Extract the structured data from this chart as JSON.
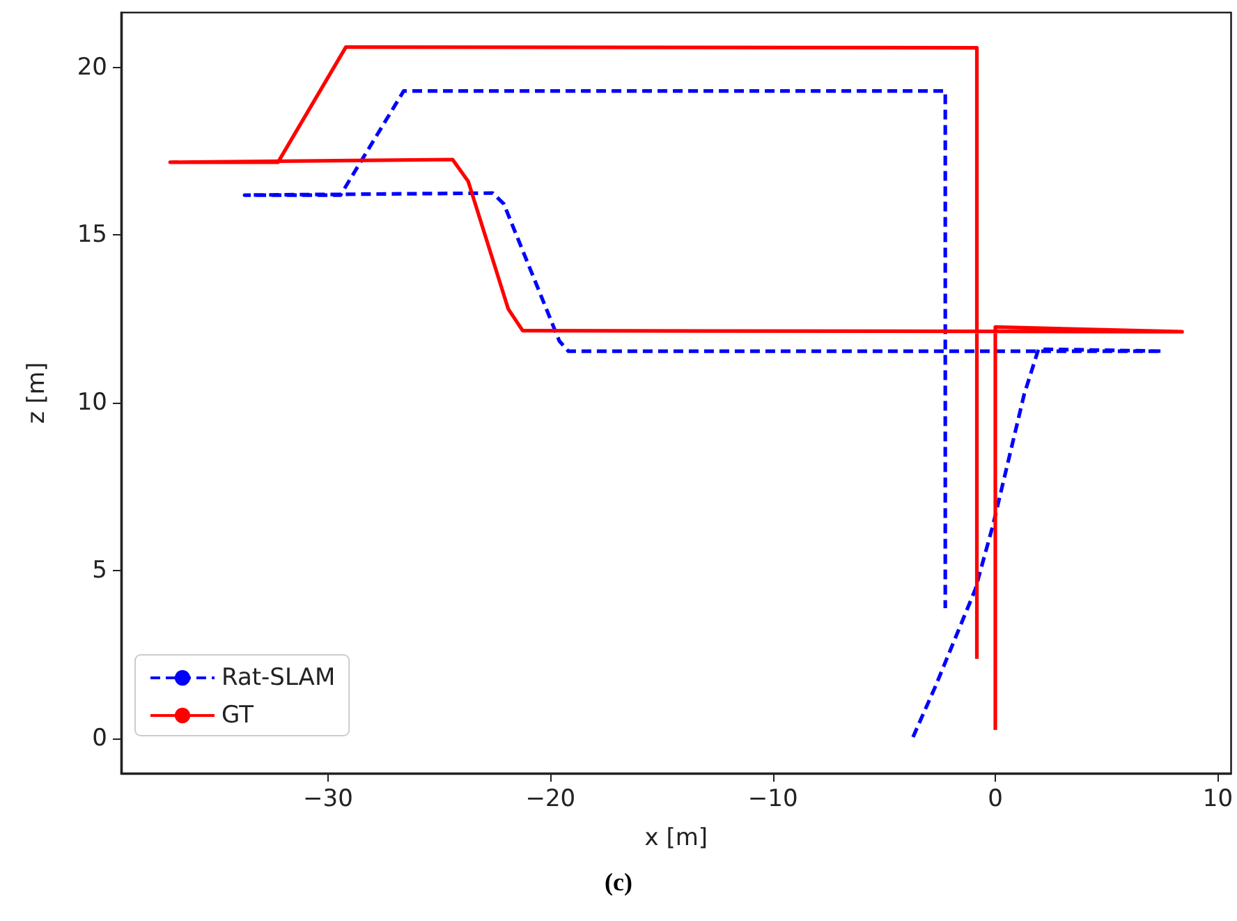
{
  "chart_data": {
    "type": "line",
    "xlabel": "x [m]",
    "ylabel": "z [m]",
    "annotations": [
      "(c)"
    ],
    "xlim": [
      -39.3,
      10.6
    ],
    "xticks": [
      -30,
      -20,
      -10,
      0,
      10
    ],
    "ylim": [
      -1.04,
      21.63
    ],
    "yticks": [
      0,
      5,
      10,
      15,
      20
    ],
    "grid": false,
    "legend": "bottom left",
    "marker": "none",
    "series": [
      {
        "name": "Rat-SLAM",
        "color": "#0000ff",
        "line_style": "dashed",
        "x": [
          -3.7,
          -2.7,
          -0.9,
          -0.1,
          1.3,
          1.94,
          7.5,
          -19.2,
          -19.6,
          -22.1,
          -22.6,
          -33.75,
          -29.44,
          -26.6,
          -2.25,
          -2.25
        ],
        "values": [
          0.04,
          1.54,
          4.44,
          6.37,
          10.26,
          11.6,
          11.54,
          11.54,
          11.84,
          15.93,
          16.25,
          16.19,
          16.19,
          19.29,
          19.29,
          3.88
        ]
      },
      {
        "name": "GT",
        "color": "#ff0000",
        "line_style": "solid",
        "x": [
          0,
          0,
          8.4,
          -21.25,
          -21.9,
          -23.7,
          -24.4,
          -37.1,
          -32.25,
          -29.2,
          -0.83,
          -0.83
        ],
        "values": [
          0.25,
          12.26,
          12.12,
          12.15,
          12.8,
          16.6,
          17.25,
          17.17,
          17.17,
          20.6,
          20.58,
          2.37
        ]
      }
    ]
  }
}
